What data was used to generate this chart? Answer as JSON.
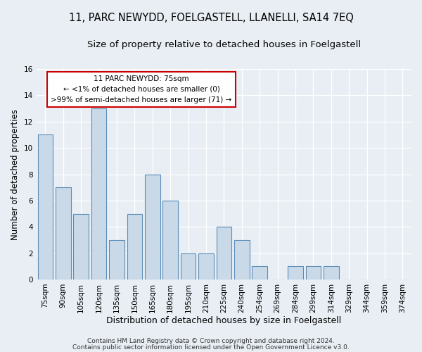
{
  "title": "11, PARC NEWYDD, FOELGASTELL, LLANELLI, SA14 7EQ",
  "subtitle": "Size of property relative to detached houses in Foelgastell",
  "xlabel": "Distribution of detached houses by size in Foelgastell",
  "ylabel": "Number of detached properties",
  "bar_labels": [
    "75sqm",
    "90sqm",
    "105sqm",
    "120sqm",
    "135sqm",
    "150sqm",
    "165sqm",
    "180sqm",
    "195sqm",
    "210sqm",
    "225sqm",
    "240sqm",
    "254sqm",
    "269sqm",
    "284sqm",
    "299sqm",
    "314sqm",
    "329sqm",
    "344sqm",
    "359sqm",
    "374sqm"
  ],
  "bar_values": [
    11,
    7,
    5,
    13,
    3,
    5,
    8,
    6,
    2,
    2,
    4,
    3,
    1,
    0,
    1,
    1,
    1,
    0,
    0,
    0,
    0
  ],
  "bar_color": "#c9d9e8",
  "bar_edge_color": "#5b8db8",
  "ylim": [
    0,
    16
  ],
  "yticks": [
    0,
    2,
    4,
    6,
    8,
    10,
    12,
    14,
    16
  ],
  "bg_color": "#e8eef4",
  "grid_color": "#ffffff",
  "annotation_text": "11 PARC NEWYDD: 75sqm\n← <1% of detached houses are smaller (0)\n>99% of semi-detached houses are larger (71) →",
  "annotation_box_color": "#ffffff",
  "annotation_box_edge": "#cc0000",
  "footer_line1": "Contains HM Land Registry data © Crown copyright and database right 2024.",
  "footer_line2": "Contains public sector information licensed under the Open Government Licence v3.0.",
  "title_fontsize": 10.5,
  "subtitle_fontsize": 9.5,
  "xlabel_fontsize": 9,
  "ylabel_fontsize": 8.5,
  "tick_fontsize": 7.5,
  "footer_fontsize": 6.5
}
